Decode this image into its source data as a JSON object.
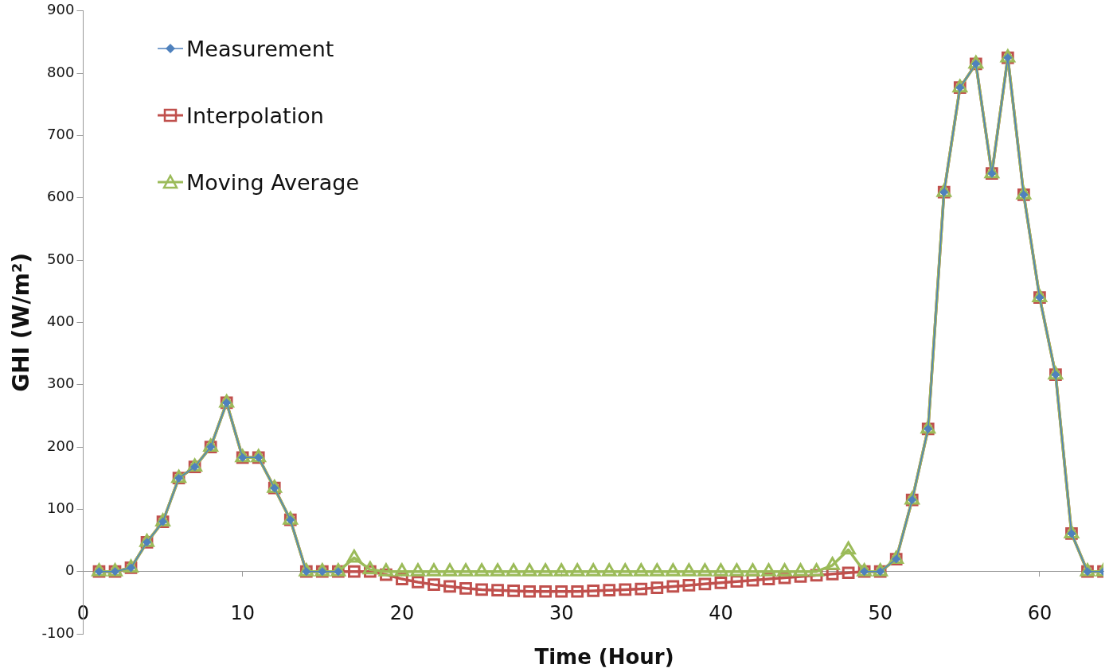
{
  "chart_data": {
    "type": "line",
    "xlabel": "Time (Hour)",
    "ylabel": "GHI (W/m²)",
    "x": [
      1,
      2,
      3,
      4,
      5,
      6,
      7,
      8,
      9,
      10,
      11,
      12,
      13,
      14,
      15,
      16,
      17,
      18,
      19,
      20,
      21,
      22,
      23,
      24,
      25,
      26,
      27,
      28,
      29,
      30,
      31,
      32,
      33,
      34,
      35,
      36,
      37,
      38,
      39,
      40,
      41,
      42,
      43,
      44,
      45,
      46,
      47,
      48,
      49,
      50,
      51,
      52,
      53,
      54,
      55,
      56,
      57,
      58,
      59,
      60,
      61,
      62,
      63,
      64
    ],
    "series": [
      {
        "name": "Measurement",
        "color": "#4f81bd",
        "marker": "diamond",
        "values": [
          0,
          0,
          6,
          47,
          80,
          150,
          168,
          200,
          271,
          183,
          183,
          134,
          83,
          0,
          0,
          0,
          null,
          null,
          null,
          null,
          null,
          null,
          null,
          null,
          null,
          null,
          null,
          null,
          null,
          null,
          null,
          null,
          null,
          null,
          null,
          null,
          null,
          null,
          null,
          null,
          null,
          null,
          null,
          null,
          null,
          null,
          null,
          null,
          0,
          0,
          20,
          115,
          229,
          609,
          777,
          815,
          639,
          825,
          605,
          440,
          316,
          61,
          0,
          0
        ]
      },
      {
        "name": "Interpolation",
        "color": "#c0504d",
        "marker": "square",
        "values": [
          0,
          0,
          6,
          47,
          80,
          150,
          168,
          200,
          271,
          183,
          183,
          134,
          83,
          0,
          0,
          0,
          0,
          0,
          -5,
          -12,
          -17,
          -21,
          -24,
          -27,
          -29,
          -30,
          -31,
          -32,
          -32,
          -32,
          -32,
          -31,
          -30,
          -29,
          -28,
          -26,
          -24,
          -22,
          -20,
          -18,
          -16,
          -14,
          -12,
          -10,
          -8,
          -6,
          -4,
          -2,
          0,
          0,
          20,
          115,
          229,
          609,
          777,
          815,
          639,
          825,
          605,
          440,
          316,
          61,
          0,
          0
        ]
      },
      {
        "name": "Moving Average",
        "color": "#9bbb59",
        "marker": "triangle",
        "values": [
          0,
          0,
          6,
          47,
          80,
          150,
          168,
          200,
          271,
          183,
          183,
          134,
          83,
          0,
          0,
          0,
          22,
          3,
          0,
          0,
          0,
          0,
          0,
          0,
          0,
          0,
          0,
          0,
          0,
          0,
          0,
          0,
          0,
          0,
          0,
          0,
          0,
          0,
          0,
          0,
          0,
          0,
          0,
          0,
          0,
          0,
          10,
          35,
          0,
          0,
          20,
          115,
          229,
          609,
          777,
          815,
          639,
          825,
          605,
          440,
          316,
          61,
          0,
          0
        ]
      }
    ],
    "xlim": [
      0,
      64
    ],
    "xticks": [
      0,
      10,
      20,
      30,
      40,
      50,
      60
    ],
    "ylim": [
      -100,
      900
    ],
    "yticks": [
      -100,
      0,
      100,
      200,
      300,
      400,
      500,
      600,
      700,
      800,
      900
    ],
    "grid": false,
    "legend": "top left",
    "line_style": "solid"
  }
}
